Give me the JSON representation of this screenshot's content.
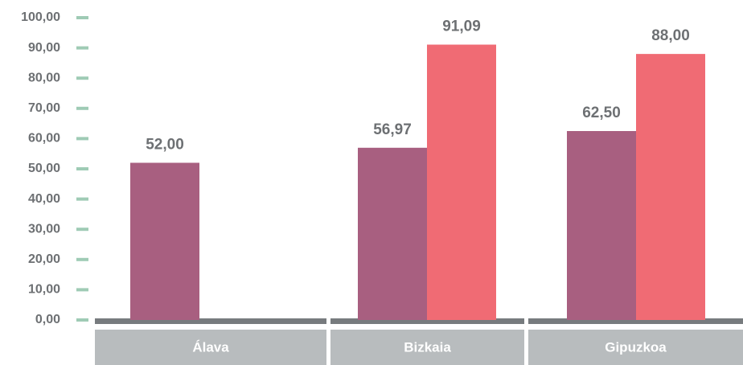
{
  "chart_data": {
    "type": "bar",
    "categories": [
      "Álava",
      "Bizkaia",
      "Gipuzkoa"
    ],
    "series": [
      {
        "color": "#a85f80",
        "values": [
          52.0,
          56.97,
          62.5
        ],
        "value_labels": [
          "52,00",
          "56,97",
          "62,50"
        ]
      },
      {
        "color": "#f06b74",
        "values": [
          null,
          91.09,
          88.0
        ],
        "value_labels": [
          null,
          "91,09",
          "88,00"
        ]
      }
    ],
    "ylim": [
      0,
      100
    ],
    "yticks": [
      {
        "value": 0,
        "label": "0,00"
      },
      {
        "value": 10,
        "label": "10,00"
      },
      {
        "value": 20,
        "label": "20,00"
      },
      {
        "value": 30,
        "label": "30,00"
      },
      {
        "value": 40,
        "label": "40,00"
      },
      {
        "value": 50,
        "label": "50,00"
      },
      {
        "value": 60,
        "label": "60,00"
      },
      {
        "value": 70,
        "label": "70,00"
      },
      {
        "value": 80,
        "label": "80,00"
      },
      {
        "value": 90,
        "label": "90,00"
      },
      {
        "value": 100,
        "label": "100,00"
      }
    ],
    "tick_color": "#9fcbb5"
  }
}
